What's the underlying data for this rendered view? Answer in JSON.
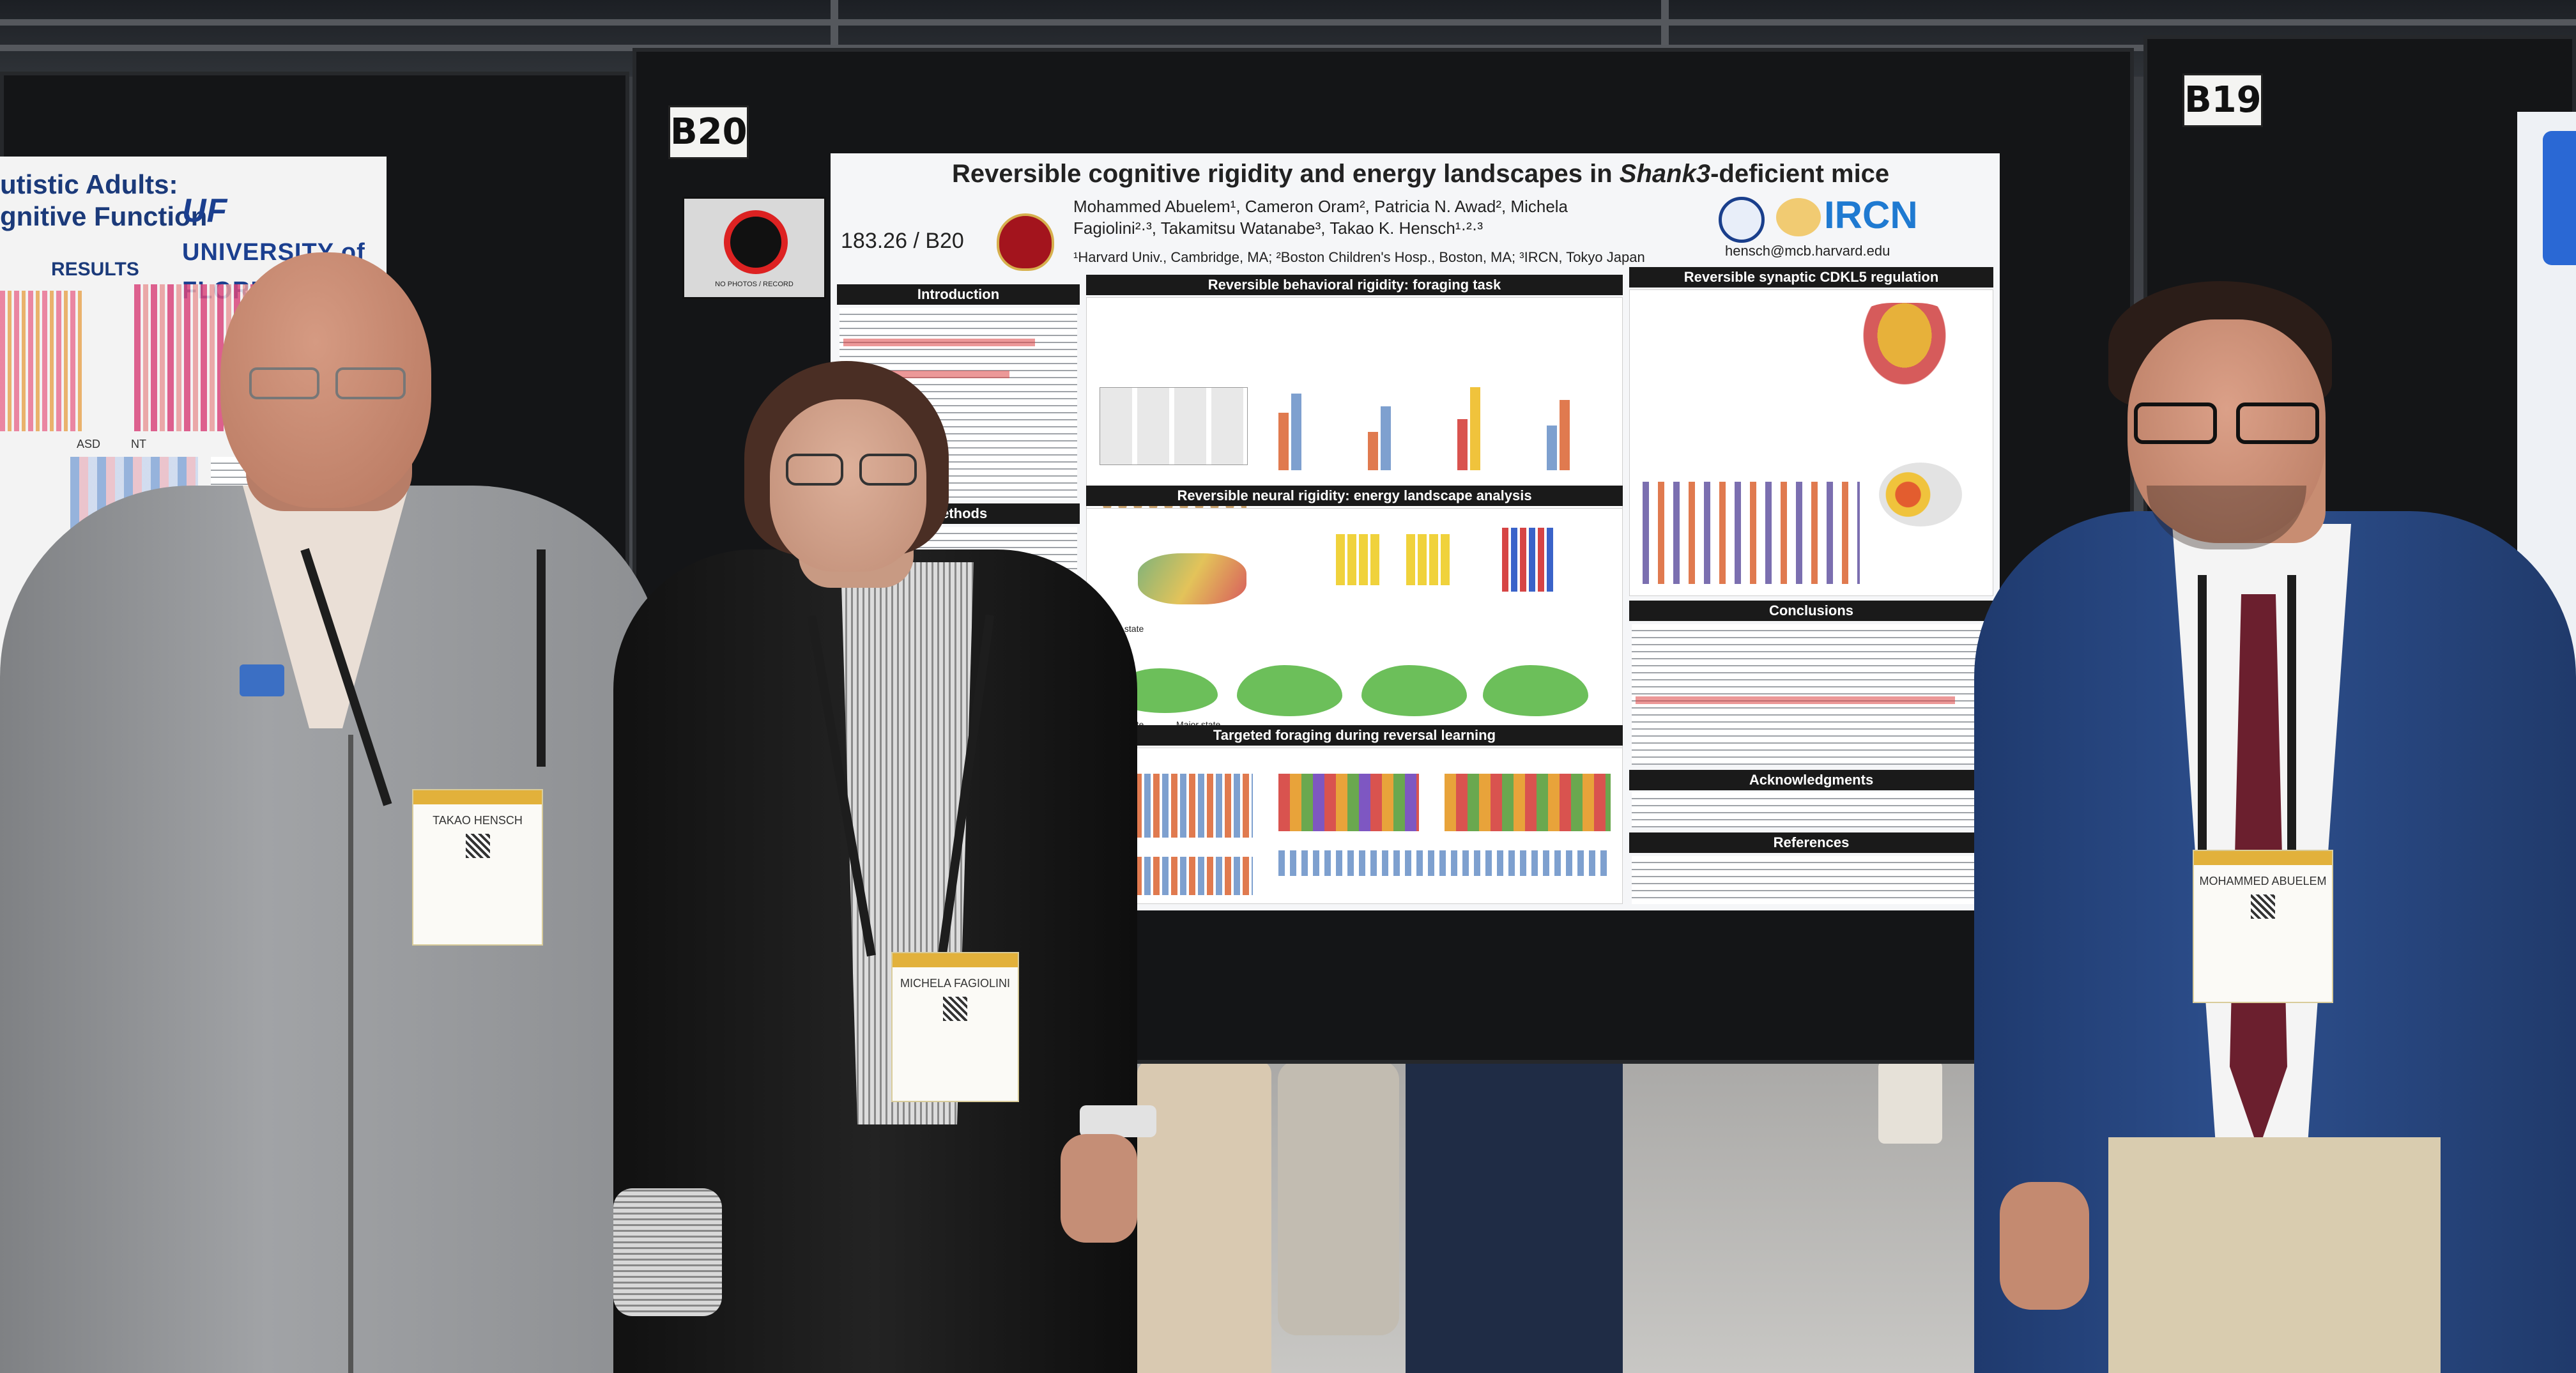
{
  "scene": {
    "board_labels": [
      "B20",
      "B19"
    ],
    "no_photo_sign": "NO PHOTOS / RECORD"
  },
  "left_poster": {
    "title_line1": "utistic Adults:",
    "title_line2": "gnitive Function",
    "logo_uf": "UF",
    "logo_text": "UNIVERSITY of FLORIDA",
    "results": "RESULTS",
    "asd": "ASD",
    "nt": "NT"
  },
  "poster": {
    "title_prefix": "Reversible cognitive rigidity and energy landscapes in ",
    "title_gene": "Shank3",
    "title_suffix": "-deficient mice",
    "poster_id": "183.26 / B20",
    "authors": "Mohammed Abuelem¹, Cameron Oram², Patricia N. Awad², Michela Fagiolini²·³, Takamitsu Watanabe³, Takao K. Hensch¹·²·³",
    "affiliations": "¹Harvard Univ., Cambridge, MA; ²Boston Children's Hosp., Boston, MA; ³IRCN, Tokyo Japan",
    "logo_ircn": "IRCN",
    "email": "hensch@mcb.harvard.edu",
    "sections": {
      "introduction": "Introduction",
      "methods": "Methods",
      "foraging": "Reversible behavioral rigidity: foraging task",
      "neural": "Reversible neural rigidity: energy landscape analysis",
      "targeted": "Targeted foraging during reversal learning",
      "cdkl5": "Reversible synaptic CDKL5 regulation",
      "conclusions": "Conclusions",
      "acknowledgments": "Acknowledgments",
      "references": "References"
    },
    "landscape_labels": {
      "minor_state": "Minor state",
      "major_state_2": "Major state #2",
      "major_state_1": "Major state #1"
    }
  },
  "people": {
    "left_badge": "TAKAO HENSCH",
    "middle_badge": "MICHELA FAGIOLINI",
    "right_badge": "MOHAMMED ABUELEM"
  }
}
